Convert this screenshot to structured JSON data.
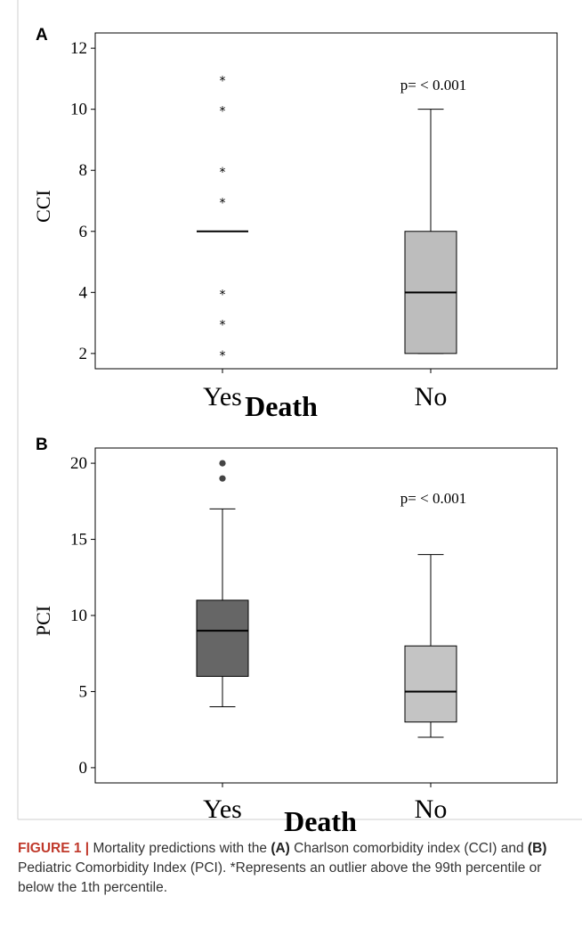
{
  "chart_data": [
    {
      "panel": "A",
      "type": "box",
      "ylabel": "CCI",
      "xlabel": "Death",
      "categories": [
        "Yes",
        "No"
      ],
      "ylim": [
        1.5,
        12.5
      ],
      "yticks": [
        2,
        4,
        6,
        8,
        10,
        12
      ],
      "annotation": "p= < 0.001",
      "boxes": [
        {
          "category": "Yes",
          "min": 6,
          "q1": 6,
          "median": 6,
          "q3": 6,
          "max": 6,
          "outliers": [
            2,
            3,
            4,
            7,
            8,
            10,
            11
          ],
          "outlier_marker": "star",
          "fill": "#555555"
        },
        {
          "category": "No",
          "min": 2,
          "q1": 2,
          "median": 4,
          "q3": 6,
          "max": 10,
          "outliers": [],
          "fill": "#bdbdbd"
        }
      ]
    },
    {
      "panel": "B",
      "type": "box",
      "ylabel": "PCI",
      "xlabel": "Death",
      "categories": [
        "Yes",
        "No"
      ],
      "ylim": [
        -1,
        21
      ],
      "yticks": [
        0,
        5,
        10,
        15,
        20
      ],
      "annotation": "p= < 0.001",
      "boxes": [
        {
          "category": "Yes",
          "min": 4,
          "q1": 6,
          "median": 9,
          "q3": 11,
          "max": 17,
          "outliers": [
            19,
            20
          ],
          "outlier_marker": "circle",
          "fill": "#666666"
        },
        {
          "category": "No",
          "min": 2,
          "q1": 3,
          "median": 5,
          "q3": 8,
          "max": 14,
          "outliers": [],
          "fill": "#c4c4c4"
        }
      ]
    }
  ],
  "caption": {
    "label": "FIGURE 1 |",
    "parts": [
      {
        "t": " Mortality predictions with the ",
        "b": false
      },
      {
        "t": "(A)",
        "b": true
      },
      {
        "t": " Charlson comorbidity index (CCI) and ",
        "b": false
      },
      {
        "t": "(B)",
        "b": true
      },
      {
        "t": " Pediatric Comorbidity Index (PCI). *Represents an outlier above the 99th percentile or below the 1th percentile.",
        "b": false
      }
    ]
  }
}
